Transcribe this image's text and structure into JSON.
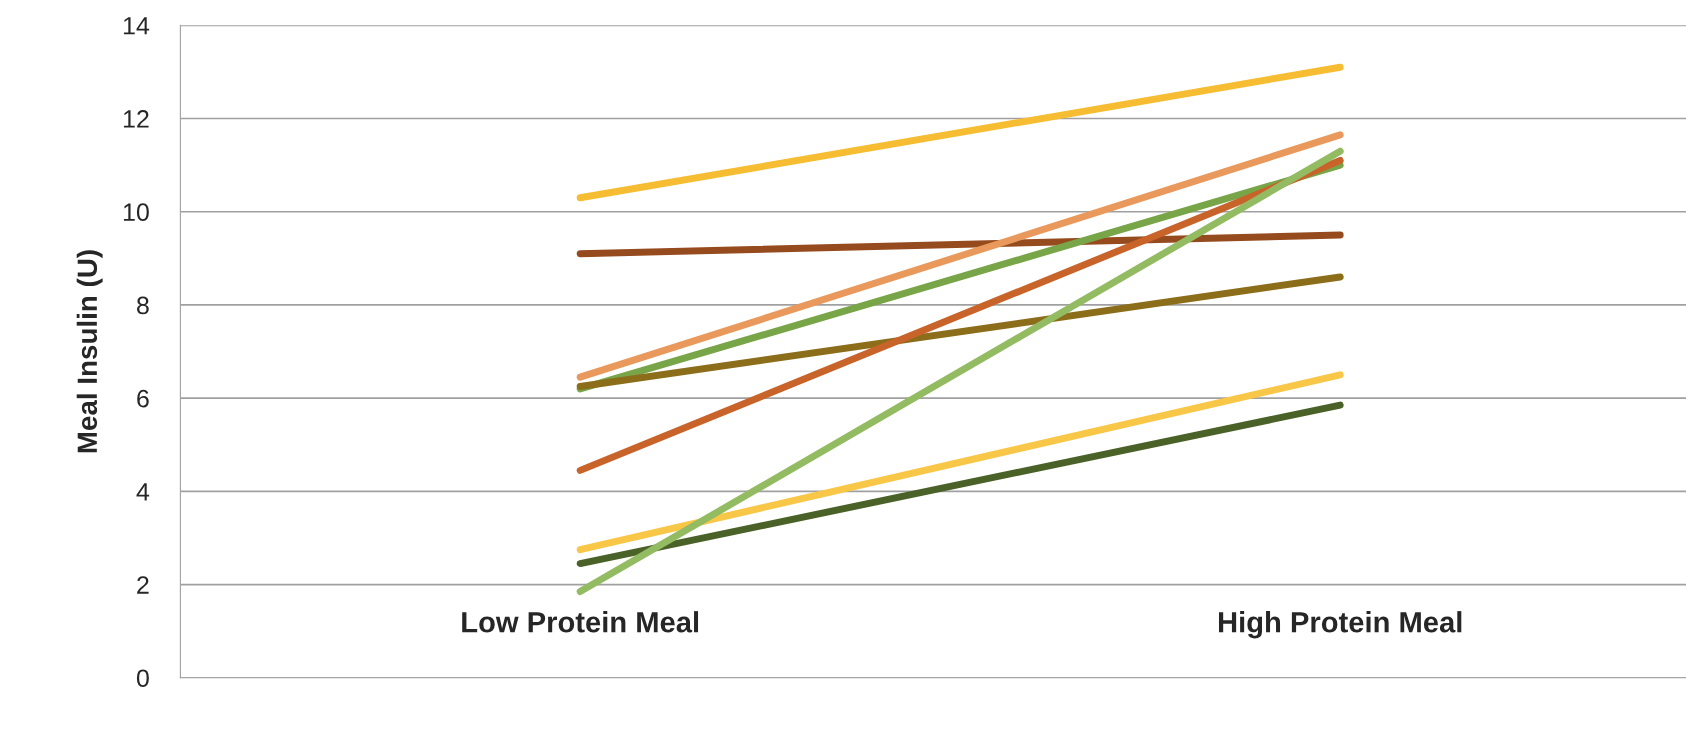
{
  "chart_data": {
    "type": "line",
    "ylabel": "Meal Insulin (U)",
    "categories": [
      "Low Protein Meal",
      "High Protein Meal"
    ],
    "ylim": [
      0,
      14
    ],
    "yticks": [
      0,
      2,
      4,
      6,
      8,
      10,
      12,
      14
    ],
    "grid": "y",
    "legend": false,
    "marker": "none",
    "line_style": "solid",
    "series": [
      {
        "color": "#f6bd33",
        "values": [
          10.3,
          13.1
        ]
      },
      {
        "color": "#964b1e",
        "values": [
          9.1,
          9.5
        ]
      },
      {
        "color": "#e9995b",
        "values": [
          6.45,
          11.65
        ]
      },
      {
        "color": "#77a547",
        "values": [
          6.2,
          11.0
        ]
      },
      {
        "color": "#8c6d1a",
        "values": [
          6.25,
          8.6
        ]
      },
      {
        "color": "#c8632a",
        "values": [
          4.45,
          11.1
        ]
      },
      {
        "color": "#f9c747",
        "values": [
          2.75,
          6.5
        ]
      },
      {
        "color": "#4a6127",
        "values": [
          2.45,
          5.85
        ]
      },
      {
        "color": "#93bb62",
        "values": [
          1.85,
          11.3
        ]
      }
    ]
  }
}
